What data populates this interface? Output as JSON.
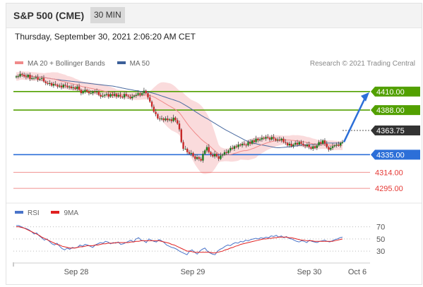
{
  "header": {
    "title": "S&P 500 (CME)",
    "timeframe": "30 MIN"
  },
  "datetime": "Thursday, September 30, 2021 2:06:20 AM CET",
  "legend": {
    "ma20_label": "MA 20 + Bollinger Bands",
    "ma50_label": "MA 50",
    "copyright": "Research © 2021 Trading Central",
    "rsi_label": "RSI",
    "ma9_label": "9MA"
  },
  "colors": {
    "green": "#52a000",
    "blue": "#2c6fd8",
    "dark": "#333333",
    "red": "#e53935",
    "band": "#f8cfd0",
    "ma20": "#f08a8a",
    "ma50": "#4a6aa0",
    "up": "#1a7a1a",
    "down": "#c62828",
    "rsi": "#4a74c9",
    "ma9": "#e02020"
  },
  "chart_data": [
    {
      "type": "candlestick",
      "price_ylim": [
        4280,
        4435
      ],
      "levels": [
        {
          "value": 4410.0,
          "label": "4410.00",
          "style": "green-badge"
        },
        {
          "value": 4388.0,
          "label": "4388.00",
          "style": "green-badge"
        },
        {
          "value": 4363.75,
          "label": "4363.75",
          "style": "dark-badge"
        },
        {
          "value": 4335.0,
          "label": "4335.00",
          "style": "blue-badge"
        },
        {
          "value": 4314.0,
          "label": "4314.00",
          "style": "red-text"
        },
        {
          "value": 4295.0,
          "label": "4295.00",
          "style": "red-text"
        }
      ],
      "x_ticks": [
        "Sep 28",
        "Sep 29",
        "Sep 30",
        "Oct 6"
      ],
      "close_series": [
        4428,
        4428,
        4431,
        4430,
        4428,
        4427,
        4430,
        4425,
        4426,
        4426,
        4427,
        4424,
        4425,
        4426,
        4422,
        4420,
        4419,
        4420,
        4417,
        4419,
        4418,
        4416,
        4417,
        4415,
        4418,
        4417,
        4415,
        4416,
        4414,
        4415,
        4413,
        4416,
        4412,
        4408,
        4410,
        4412,
        4410,
        4408,
        4408,
        4410,
        4409,
        4410,
        4406,
        4404,
        4405,
        4406,
        4407,
        4404,
        4407,
        4405,
        4407,
        4404,
        4406,
        4404,
        4403,
        4407,
        4405,
        4404,
        4402,
        4404,
        4405,
        4406,
        4408,
        4406,
        4408,
        4411,
        4408,
        4403,
        4398,
        4392,
        4386,
        4383,
        4378,
        4377,
        4378,
        4376,
        4378,
        4376,
        4377,
        4375,
        4379,
        4376,
        4372,
        4365,
        4350,
        4342,
        4342,
        4338,
        4336,
        4337,
        4333,
        4330,
        4332,
        4330,
        4328,
        4336,
        4340,
        4344,
        4338,
        4335,
        4333,
        4336,
        4333,
        4330,
        4334,
        4335,
        4338,
        4337,
        4340,
        4343,
        4342,
        4345,
        4344,
        4347,
        4346,
        4348,
        4347,
        4346,
        4350,
        4348,
        4352,
        4350,
        4354,
        4352,
        4353,
        4355,
        4354,
        4356,
        4355,
        4353,
        4356,
        4354,
        4352,
        4353,
        4352,
        4354,
        4350,
        4349,
        4346,
        4348,
        4345,
        4347,
        4349,
        4347,
        4350,
        4348,
        4346,
        4345,
        4347,
        4344,
        4342,
        4345,
        4343,
        4346,
        4350,
        4348,
        4352,
        4348,
        4344,
        4341,
        4343,
        4345,
        4346,
        4347,
        4346,
        4349,
        4350
      ],
      "forecast_from": 4350,
      "forecast_to": 4410,
      "rsi_ylim": [
        15,
        80
      ],
      "rsi_levels": [
        70,
        50,
        30
      ],
      "rsi_series": [
        72,
        72,
        70,
        68,
        67,
        65,
        62,
        58,
        60,
        55,
        52,
        48,
        50,
        46,
        42,
        40,
        43,
        38,
        34,
        32,
        35,
        33,
        36,
        35,
        36,
        40,
        38,
        41,
        40,
        38,
        36,
        40,
        42,
        44,
        43,
        46,
        45,
        42,
        44,
        43,
        45,
        41,
        42,
        44,
        46,
        48,
        45,
        50,
        52,
        48,
        47,
        44,
        50,
        48,
        46,
        45,
        49,
        47,
        44,
        40,
        38,
        36,
        35,
        33,
        30,
        28,
        26,
        24,
        30,
        32,
        28,
        25,
        30,
        33,
        35,
        30,
        27,
        25,
        24,
        30,
        33,
        35,
        38,
        40,
        39,
        42,
        44,
        43,
        46,
        45,
        48,
        47,
        49,
        50,
        51,
        50,
        52,
        51,
        53,
        52,
        55,
        54,
        56,
        53,
        55,
        52,
        54,
        51,
        50,
        48,
        46,
        45,
        47,
        46,
        44,
        48,
        46,
        45,
        44,
        46,
        47,
        48,
        46,
        45,
        47,
        49,
        50,
        52,
        53
      ],
      "ma9_series": [
        70,
        70,
        69,
        68,
        66,
        64,
        62,
        60,
        58,
        56,
        53,
        51,
        49,
        47,
        45,
        43,
        41,
        40,
        38,
        37,
        36,
        35,
        35,
        35,
        36,
        37,
        37,
        38,
        39,
        39,
        39,
        40,
        40,
        41,
        42,
        42,
        43,
        43,
        43,
        44,
        44,
        44,
        44,
        44,
        44,
        45,
        45,
        46,
        46,
        47,
        47,
        47,
        47,
        47,
        47,
        47,
        47,
        46,
        45,
        44,
        43,
        41,
        40,
        38,
        36,
        34,
        32,
        30,
        30,
        29,
        28,
        28,
        28,
        28,
        28,
        28,
        28,
        27,
        27,
        28,
        29,
        30,
        32,
        33,
        35,
        36,
        38,
        39,
        41,
        42,
        43,
        44,
        45,
        46,
        47,
        48,
        49,
        50,
        50,
        51,
        51,
        52,
        52,
        53,
        53,
        53,
        53,
        52,
        52,
        51,
        50,
        49,
        48,
        48,
        47,
        47,
        47,
        46,
        46,
        46,
        46,
        46,
        46,
        46,
        46,
        47,
        48,
        49,
        50
      ]
    }
  ]
}
